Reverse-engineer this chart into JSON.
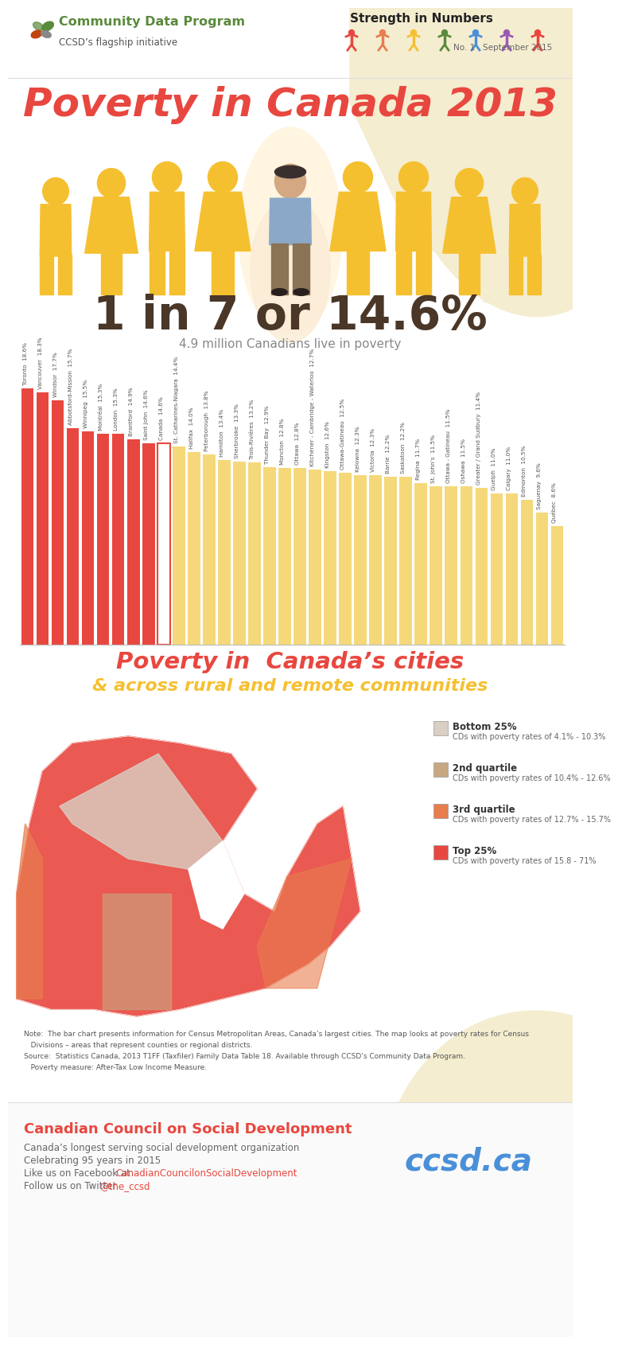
{
  "title": "Poverty in Canada 2013",
  "subtitle": "1 in 7 or 14.6%",
  "subtitle2": "4.9 million Canadians live in poverty",
  "bg_color": "#FFFFFF",
  "title_color": "#E8473F",
  "stat_color": "#4A3728",
  "bar_title": "Poverty in  Canada’s cities",
  "bar_subtitle": "& across rural and remote communities",
  "bar_title_color": "#E8473F",
  "bar_subtitle_color": "#F5C030",
  "program_name": "Community Data Program",
  "program_sub": "CCSD’s flagship initiative",
  "series_name": "Strength in Numbers",
  "series_sub": "No. 1   September 2015",
  "footer_org": "Canadian Council on Social Development",
  "footer_desc": "Canada’s longest serving social development organization",
  "footer_years": "Celebrating 95 years in 2015",
  "footer_fb_plain": "Like us on Facebook at   ",
  "footer_fb_link": "CanadianCouncilonSocialDevelopment",
  "footer_tw_plain": "Follow us on Twitter   ",
  "footer_tw_link": "@the_ccsd",
  "footer_web": "ccsd.ca",
  "note_line1": "Note:  The bar chart presents information for Census Metropolitan Areas, Canada’s largest cities. The map looks at poverty rates for Census",
  "note_line2": "   Divisions – areas that represent counties or regional districts.",
  "note_line3": "Source:  Statistics Canada, 2013 T1FF (Taxfiler) Family Data Table 18. Available through CCSD’s Community Data Program.",
  "note_line4": "   Poverty measure: After-Tax Low Income Measure.",
  "bars": [
    {
      "city": "Toronto",
      "value": 18.6,
      "above": true
    },
    {
      "city": "Vancouver",
      "value": 18.3,
      "above": true
    },
    {
      "city": "Windsor",
      "value": 17.7,
      "above": true
    },
    {
      "city": "Abbotsford-Mission",
      "value": 15.7,
      "above": true
    },
    {
      "city": "Winnipeg",
      "value": 15.5,
      "above": true
    },
    {
      "city": "Montréal",
      "value": 15.3,
      "above": true
    },
    {
      "city": "London",
      "value": 15.3,
      "above": true
    },
    {
      "city": "Brantford",
      "value": 14.9,
      "above": true
    },
    {
      "city": "Saint John",
      "value": 14.6,
      "above": true
    },
    {
      "city": "Canada",
      "value": 14.6,
      "above": false
    },
    {
      "city": "St. Catharines-Niagara",
      "value": 14.4,
      "above": false
    },
    {
      "city": "Halifax",
      "value": 14.0,
      "above": false
    },
    {
      "city": "Peterborough",
      "value": 13.8,
      "above": false
    },
    {
      "city": "Hamilton",
      "value": 13.4,
      "above": false
    },
    {
      "city": "Sherbrooke",
      "value": 13.3,
      "above": false
    },
    {
      "city": "Trois-Rivières",
      "value": 13.2,
      "above": false
    },
    {
      "city": "Thunder Bay",
      "value": 12.9,
      "above": false
    },
    {
      "city": "Moncton",
      "value": 12.8,
      "above": false
    },
    {
      "city": "Ottawa",
      "value": 12.8,
      "above": false
    },
    {
      "city": "Kitchener - Cambridge - Waterloo",
      "value": 12.7,
      "above": false
    },
    {
      "city": "Kingston",
      "value": 12.6,
      "above": false
    },
    {
      "city": "Ottawa-Gatineau",
      "value": 12.5,
      "above": false
    },
    {
      "city": "Kelowna",
      "value": 12.3,
      "above": false
    },
    {
      "city": "Victoria",
      "value": 12.3,
      "above": false
    },
    {
      "city": "Barrie",
      "value": 12.2,
      "above": false
    },
    {
      "city": "Saskatoon",
      "value": 12.2,
      "above": false
    },
    {
      "city": "Regina",
      "value": 11.7,
      "above": false
    },
    {
      "city": "St. John’s",
      "value": 11.5,
      "above": false
    },
    {
      "city": "Ottawa - Gatineau",
      "value": 11.5,
      "above": false
    },
    {
      "city": "Oshawa",
      "value": 11.5,
      "above": false
    },
    {
      "city": "Greater / Grand Sudbury",
      "value": 11.4,
      "above": false
    },
    {
      "city": "Guelph",
      "value": 11.0,
      "above": false
    },
    {
      "city": "Calgary",
      "value": 11.0,
      "above": false
    },
    {
      "city": "Edmonton",
      "value": 10.5,
      "above": false
    },
    {
      "city": "Saguenay",
      "value": 9.6,
      "above": false
    },
    {
      "city": "Québec",
      "value": 8.6,
      "above": false
    }
  ],
  "color_above": "#E8473F",
  "color_below": "#F5D87A",
  "color_canada_fill": "#FFFFFF",
  "color_canada_edge": "#E8473F",
  "legend_items": [
    {
      "label": "Bottom 25%",
      "sub": "CDs with poverty rates of 4.1% - 10.3%",
      "color": "#D9CFC4"
    },
    {
      "label": "2nd quartile",
      "sub": "CDs with poverty rates of 10.4% - 12.6%",
      "color": "#C8A882"
    },
    {
      "label": "3rd quartile",
      "sub": "CDs with poverty rates of 12.7% - 15.7%",
      "color": "#E87D4E"
    },
    {
      "label": "Top 25%",
      "sub": "CDs with poverty rates of 15.8 - 71%",
      "color": "#E8473F"
    }
  ],
  "icon_colors": [
    "#E8473F",
    "#E87D4E",
    "#F5C030",
    "#5A8A3C",
    "#4A90D9",
    "#9B59B6",
    "#E8473F"
  ]
}
